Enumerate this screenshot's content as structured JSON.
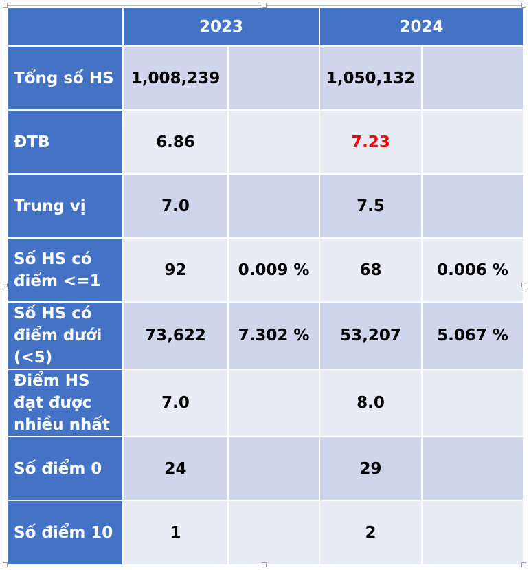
{
  "header": {
    "year1": "2023",
    "year2": "2024"
  },
  "accent": "#4472c4",
  "highlight_color": "#ff0000",
  "rows": [
    {
      "label": "Tổng số HS",
      "v2023": "1,008,239",
      "p2023": "",
      "v2024": "1,050,132",
      "p2024": ""
    },
    {
      "label": "ĐTB",
      "v2023": "6.86",
      "p2023": "",
      "v2024": "7.23",
      "p2024": ""
    },
    {
      "label": "Trung vị",
      "v2023": "7.0",
      "p2023": "",
      "v2024": "7.5",
      "p2024": ""
    },
    {
      "label": "Số HS có điểm <=1",
      "v2023": "92",
      "p2023": "0.009 %",
      "v2024": "68",
      "p2024": "0.006 %"
    },
    {
      "label": "Số HS có điểm dưới (<5)",
      "v2023": "73,622",
      "p2023": "7.302 %",
      "v2024": "53,207",
      "p2024": "5.067 %"
    },
    {
      "label": "Điểm HS đạt được nhiều nhất",
      "v2023": "7.0",
      "p2023": "",
      "v2024": "8.0",
      "p2024": ""
    },
    {
      "label": "Số điểm 0",
      "v2023": "24",
      "p2023": "",
      "v2024": "29",
      "p2024": ""
    },
    {
      "label": "Số điểm 10",
      "v2023": "1",
      "p2023": "",
      "v2024": "2",
      "p2024": ""
    }
  ]
}
